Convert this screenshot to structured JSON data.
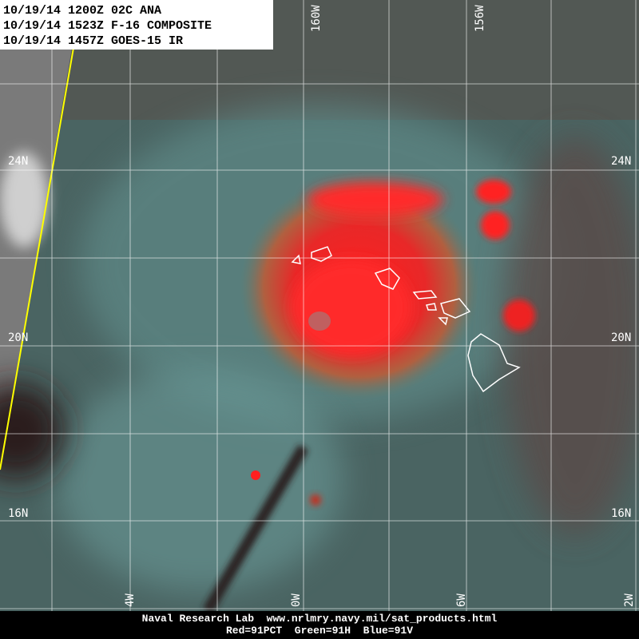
{
  "header": {
    "lines": [
      "10/19/14 1200Z 02C ANA",
      "10/19/14 1523Z F-16 COMPOSITE",
      "10/19/14 1457Z GOES-15 IR"
    ]
  },
  "grid_labels": {
    "top": [
      "160W",
      "156W"
    ],
    "left": [
      "24N",
      "20N",
      "16N"
    ],
    "right": [
      "24N",
      "20N",
      "16N"
    ],
    "bottom": [
      "4W",
      "0W",
      "6W",
      "2W"
    ]
  },
  "footer": {
    "lines": [
      "Naval Research Lab  www.nrlmry.navy.mil/sat_products.html",
      "Red=91PCT  Green=91H  Blue=91V"
    ]
  }
}
